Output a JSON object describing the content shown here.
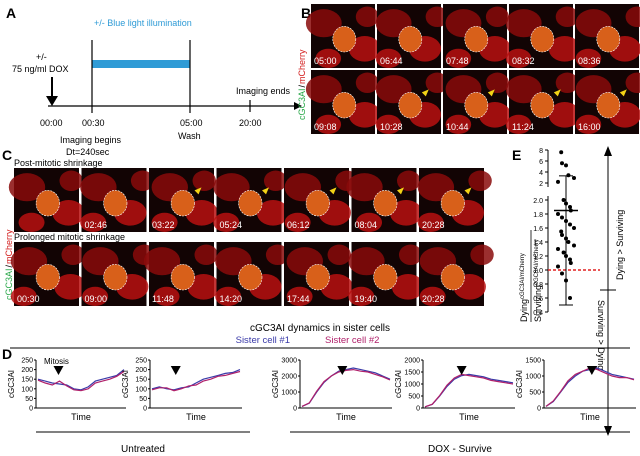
{
  "panel_a": {
    "letter": "A",
    "treatment_pm": "+/-",
    "treatment_dose": "75 ng/ml DOX",
    "illumination_label": "+/- Blue light illumination",
    "times": [
      "00:00",
      "00:30",
      "05:00",
      "20:00"
    ],
    "imaging_begins": "Imaging begins",
    "dt": "Dt=240sec",
    "wash": "Wash",
    "imaging_ends": "Imaging ends",
    "colors": {
      "illumination": "#2f9bd6",
      "label": "#2f9bd6"
    }
  },
  "panel_b": {
    "letter": "B",
    "channel_a": "cGC3AI",
    "channel_sep": "/",
    "channel_b": "mCherry",
    "timestamps": [
      "05:00",
      "06:44",
      "07:48",
      "08:32",
      "08:36",
      "09:08",
      "10:28",
      "10:44",
      "11:24",
      "16:00"
    ]
  },
  "panel_c": {
    "letter": "C",
    "channel_a": "cGC3AI",
    "channel_sep": "/",
    "channel_b": "mCherry",
    "row1_title": "Post-mitotic shrinkage",
    "row1_times": [
      "",
      "02:46",
      "03:22",
      "05:24",
      "06:12",
      "08:04",
      "20:28"
    ],
    "row2_title": "Prolonged mitotic shrinkage",
    "row2_times": [
      "00:30",
      "09:00",
      "11:48",
      "14:20",
      "17:44",
      "19:40",
      "20:28"
    ]
  },
  "panel_e": {
    "letter": "E",
    "ylabel_num": "Dying",
    "ylabel_num_sup": "cGC3AI/mCherry",
    "ylabel_den": "Surviving",
    "ylabel_den_sup": "cGC3AI/mCherry",
    "upper_ticks": [
      "8",
      "6",
      "4",
      "2"
    ],
    "lower_ticks": [
      "2.0",
      "1.8",
      "1.6",
      "1.4",
      "1.2",
      "1.0",
      "0.8",
      "0.6",
      "0.4"
    ],
    "label_up": "Dying > Surviving",
    "label_down": "Surviving > Dying",
    "reference_line": 1.0,
    "mean": 1.85,
    "error_low": 0.5,
    "error_high": 3.3,
    "points": [
      7.6,
      5.6,
      5.2,
      3.4,
      2.9,
      2.2,
      2.0,
      1.95,
      1.9,
      1.85,
      1.8,
      1.75,
      1.7,
      1.65,
      1.6,
      1.55,
      1.5,
      1.45,
      1.4,
      1.35,
      1.3,
      1.25,
      1.2,
      1.15,
      1.1,
      1.05,
      0.95,
      0.85,
      0.6
    ]
  },
  "panel_d": {
    "letter": "D",
    "title": "cGC3AI dynamics in sister cells",
    "legend_1": "Sister cell #1",
    "legend_2": "Sister cell #2",
    "colors": {
      "sister_1": "#3a3aa8",
      "sister_2": "#b0206a"
    },
    "mitosis_label": "Mitosis",
    "ylabel": "cGC3AI",
    "xlabel": "Time",
    "group_untreated": "Untreated",
    "group_dox": "DOX - Survive",
    "untreated_ticks": [
      "250",
      "200",
      "150",
      "100",
      "50",
      "0"
    ],
    "plot3_ticks": [
      "3000",
      "2000",
      "1000",
      "0"
    ],
    "plot4_ticks": [
      "2000",
      "1500",
      "1000",
      "500",
      "0"
    ],
    "plot5_ticks": [
      "1500",
      "1000",
      "500",
      "0"
    ]
  },
  "chart_data": [
    {
      "type": "scatter",
      "title": "",
      "ylabel": "Dying(cGC3AI/mCherry) / Surviving(cGC3AI/mCherry)",
      "series": [
        {
          "name": "ratio",
          "values": [
            7.6,
            5.6,
            5.2,
            3.4,
            2.9,
            2.2,
            2.0,
            1.95,
            1.9,
            1.85,
            1.8,
            1.75,
            1.7,
            1.65,
            1.6,
            1.55,
            1.5,
            1.45,
            1.4,
            1.35,
            1.3,
            1.25,
            1.2,
            1.15,
            1.1,
            1.05,
            0.95,
            0.85,
            0.6
          ]
        }
      ],
      "mean": 1.85,
      "error": [
        0.5,
        3.3
      ],
      "ylim": [
        0.4,
        8
      ]
    },
    {
      "type": "line",
      "title": "cGC3AI dynamics in sister cells (Untreated)",
      "xlabel": "Time",
      "ylabel": "cGC3AI",
      "ylim": [
        0,
        250
      ],
      "series": [
        {
          "name": "Sister cell #1",
          "values": [
            150,
            140,
            130,
            125,
            120,
            100,
            95,
            110,
            140,
            150,
            160,
            170,
            200
          ]
        },
        {
          "name": "Sister cell #2",
          "values": [
            145,
            130,
            120,
            140,
            115,
            95,
            90,
            100,
            130,
            140,
            150,
            165,
            190
          ]
        }
      ]
    },
    {
      "type": "line",
      "title": "cGC3AI dynamics in sister cells (Untreated)",
      "xlabel": "Time",
      "ylabel": "cGC3AI",
      "ylim": [
        0,
        250
      ],
      "series": [
        {
          "name": "Sister cell #1",
          "values": [
            100,
            110,
            100,
            95,
            105,
            110,
            130,
            150,
            160,
            170,
            180,
            185,
            200
          ]
        },
        {
          "name": "Sister cell #2",
          "values": [
            95,
            105,
            105,
            90,
            100,
            115,
            120,
            140,
            150,
            165,
            170,
            180,
            190
          ]
        }
      ]
    },
    {
      "type": "line",
      "title": "cGC3AI dynamics in sister cells (DOX - Survive)",
      "xlabel": "Time",
      "ylabel": "cGC3AI",
      "ylim": [
        0,
        3000
      ],
      "series": [
        {
          "name": "Sister cell #1",
          "values": [
            100,
            300,
            1000,
            1600,
            2000,
            2300,
            2400,
            2500,
            2400,
            2300,
            2200,
            2000,
            1800
          ]
        },
        {
          "name": "Sister cell #2",
          "values": [
            100,
            320,
            1050,
            1650,
            2000,
            2250,
            2350,
            2400,
            2300,
            2250,
            2100,
            1950,
            1750
          ]
        }
      ]
    },
    {
      "type": "line",
      "title": "cGC3AI dynamics in sister cells (DOX - Survive)",
      "xlabel": "Time",
      "ylabel": "cGC3AI",
      "ylim": [
        0,
        2000
      ],
      "series": [
        {
          "name": "Sister cell #1",
          "values": [
            50,
            150,
            500,
            900,
            1200,
            1350,
            1400,
            1350,
            1300,
            1200,
            1150,
            1100,
            1050
          ]
        },
        {
          "name": "Sister cell #2",
          "values": [
            50,
            160,
            520,
            950,
            1250,
            1400,
            1350,
            1300,
            1250,
            1150,
            1100,
            1050,
            1000
          ]
        }
      ]
    },
    {
      "type": "line",
      "title": "cGC3AI dynamics in sister cells (DOX - Survive)",
      "xlabel": "Time",
      "ylabel": "cGC3AI",
      "ylim": [
        0,
        1500
      ],
      "series": [
        {
          "name": "Sister cell #1",
          "values": [
            50,
            200,
            500,
            800,
            1000,
            1150,
            1200,
            1250,
            1150,
            1050,
            1000,
            950,
            900
          ]
        },
        {
          "name": "Sister cell #2",
          "values": [
            50,
            220,
            520,
            850,
            1050,
            1150,
            1250,
            1200,
            1100,
            1000,
            950,
            950,
            880
          ]
        }
      ]
    }
  ]
}
